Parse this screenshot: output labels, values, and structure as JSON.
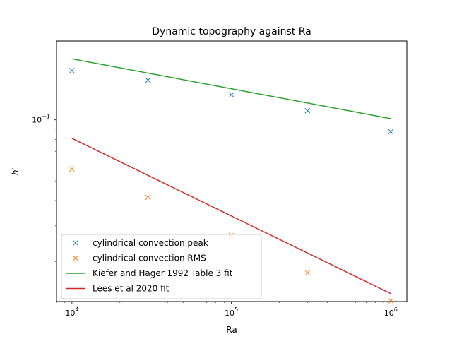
{
  "chart_data": {
    "type": "scatter",
    "title": "Dynamic topography against Ra",
    "xlabel": "Ra",
    "ylabel": "h′",
    "xscale": "log",
    "yscale": "log",
    "xlim": [
      8000,
      1260000
    ],
    "ylim": [
      0.0127,
      0.245
    ],
    "grid": false,
    "legend_position": "lower-left",
    "x_ticks": [
      {
        "value": 10000,
        "base": "10",
        "exp": "4"
      },
      {
        "value": 100000,
        "base": "10",
        "exp": "5"
      },
      {
        "value": 1000000,
        "base": "10",
        "exp": "6"
      }
    ],
    "y_ticks": [
      {
        "value": 0.1,
        "base": "10",
        "exp": "−1"
      }
    ],
    "series": [
      {
        "name": "cylindrical convection peak",
        "style": "markers",
        "marker": "x",
        "color": "#1f77b4",
        "x": [
          10000,
          30000,
          100000,
          300000,
          1000000
        ],
        "y": [
          0.175,
          0.157,
          0.133,
          0.111,
          0.0875
        ]
      },
      {
        "name": "cylindrical convection RMS",
        "style": "markers",
        "marker": "x",
        "color": "#ff7f0e",
        "x": [
          10000,
          30000,
          100000,
          300000,
          1000000
        ],
        "y": [
          0.0573,
          0.0415,
          0.0269,
          0.0176,
          0.0128
        ]
      },
      {
        "name": "Kiefer and Hager 1992 Table 3 fit",
        "style": "line",
        "color": "#2ca02c",
        "x": [
          10000,
          1000000
        ],
        "y": [
          0.2,
          0.1014
        ]
      },
      {
        "name": "Lees et al 2020 fit",
        "style": "line",
        "color": "#d62728",
        "x": [
          10000,
          1000000
        ],
        "y": [
          0.0811,
          0.0139
        ]
      }
    ]
  }
}
